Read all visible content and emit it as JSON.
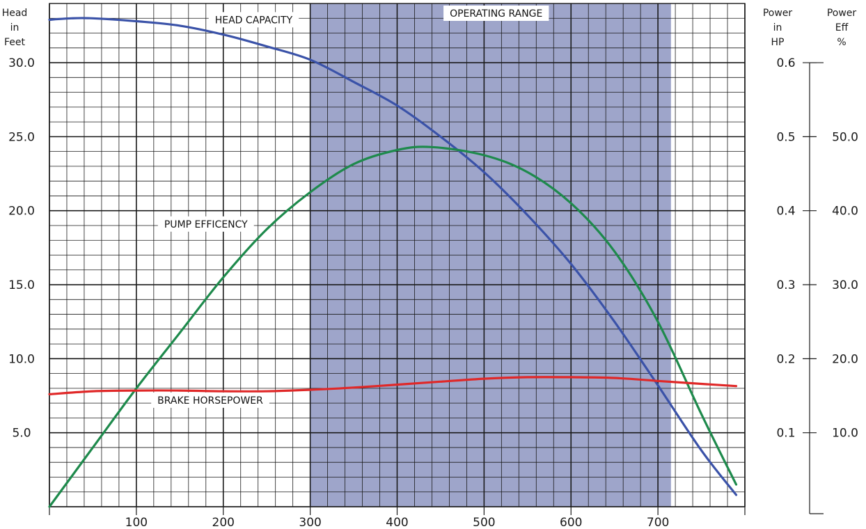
{
  "chart_data": {
    "type": "line",
    "y_left_header": [
      "Head",
      "in",
      "Feet"
    ],
    "y_right_hp_header": [
      "Power",
      "in",
      "HP"
    ],
    "y_right_eff_header": [
      "Power",
      "Eff",
      "%"
    ],
    "x_range": [
      0,
      800
    ],
    "y_left_range": [
      0,
      34
    ],
    "y_hp_range": [
      0,
      0.68
    ],
    "y_eff_range": [
      0,
      68
    ],
    "x_ticks": [
      {
        "value": 100,
        "label": "100"
      },
      {
        "value": 200,
        "label": "200"
      },
      {
        "value": 300,
        "label": "300"
      },
      {
        "value": 400,
        "label": "400"
      },
      {
        "value": 500,
        "label": "500"
      },
      {
        "value": 600,
        "label": "600"
      },
      {
        "value": 700,
        "label": "700"
      }
    ],
    "y_left_ticks": [
      {
        "value": 5,
        "label": "5.0"
      },
      {
        "value": 10,
        "label": "10.0"
      },
      {
        "value": 15,
        "label": "15.0"
      },
      {
        "value": 20,
        "label": "20.0"
      },
      {
        "value": 25,
        "label": "25.0"
      },
      {
        "value": 30,
        "label": "30.0"
      }
    ],
    "y_hp_ticks": [
      {
        "value": 0.1,
        "label": "0.1"
      },
      {
        "value": 0.2,
        "label": "0.2"
      },
      {
        "value": 0.3,
        "label": "0.3"
      },
      {
        "value": 0.4,
        "label": "0.4"
      },
      {
        "value": 0.5,
        "label": "0.5"
      },
      {
        "value": 0.6,
        "label": "0.6"
      }
    ],
    "y_eff_ticks": [
      {
        "value": 10,
        "label": "10.0"
      },
      {
        "value": 20,
        "label": "20.0"
      },
      {
        "value": 30,
        "label": "30.0"
      },
      {
        "value": 40,
        "label": "40.0"
      },
      {
        "value": 50,
        "label": "50.0"
      }
    ],
    "grid": true,
    "operating_range": {
      "label": "OPERATING RANGE",
      "x_start": 300,
      "x_end": 715,
      "color": "#9ea5ca"
    },
    "series": [
      {
        "name": "HEAD CAPACITY",
        "color": "#3a52a8",
        "axis": "left",
        "x": [
          0,
          25,
          50,
          100,
          150,
          200,
          250,
          300,
          350,
          400,
          450,
          500,
          550,
          600,
          650,
          700,
          750,
          790
        ],
        "y": [
          32.9,
          33.0,
          33.0,
          32.8,
          32.5,
          31.9,
          31.1,
          30.2,
          28.7,
          27.1,
          25.0,
          22.6,
          19.7,
          16.4,
          12.5,
          8.2,
          3.8,
          0.8
        ]
      },
      {
        "name": "PUMP EFFICENCY",
        "color": "#1e8a4c",
        "axis": "eff",
        "x": [
          0,
          50,
          100,
          150,
          200,
          250,
          300,
          350,
          400,
          440,
          500,
          550,
          600,
          650,
          700,
          750,
          790
        ],
        "y": [
          0,
          8,
          16,
          23.5,
          31,
          37.5,
          42.5,
          46.3,
          48.2,
          48.6,
          47.5,
          45.2,
          41,
          34.5,
          25,
          12.5,
          3
        ]
      },
      {
        "name": "BRAKE HORSEPOWER",
        "color": "#e02828",
        "axis": "hp",
        "x": [
          0,
          50,
          100,
          150,
          200,
          250,
          300,
          350,
          400,
          450,
          500,
          550,
          600,
          650,
          700,
          750,
          790
        ],
        "y": [
          0.152,
          0.156,
          0.157,
          0.157,
          0.156,
          0.156,
          0.158,
          0.161,
          0.165,
          0.169,
          0.173,
          0.175,
          0.175,
          0.174,
          0.17,
          0.166,
          0.163
        ]
      }
    ],
    "annotations": [
      {
        "text": "HEAD CAPACITY",
        "x": 235,
        "y": 32.9
      },
      {
        "text": "PUMP EFFICENCY",
        "x": 180,
        "y": 19.1
      },
      {
        "text": "BRAKE HORSEPOWER",
        "x": 185,
        "y": 7.2
      }
    ]
  }
}
